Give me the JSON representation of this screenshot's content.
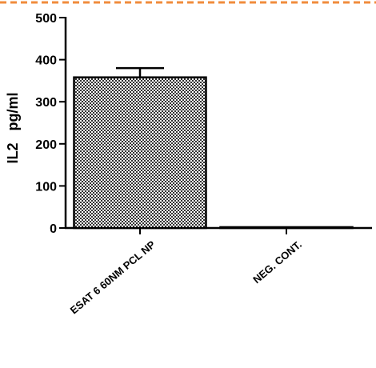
{
  "chart_data": {
    "type": "bar",
    "title": "",
    "xlabel": "",
    "ylabel": "IL2   pg/ml",
    "ylim": [
      0,
      500
    ],
    "yticks": [
      0,
      100,
      200,
      300,
      400,
      500
    ],
    "categories": [
      "ESAT 6 60NM PCL NP",
      "NEG. CONT."
    ],
    "values": [
      358,
      2
    ],
    "errors": [
      22,
      0
    ],
    "bar_fill": "checkered-gray",
    "colors": {
      "bar_pattern_dark": "#222222",
      "bar_pattern_light": "#ffffff",
      "axis": "#000000",
      "top_border": "#f08c3c"
    },
    "grid": false,
    "legend": "none"
  }
}
